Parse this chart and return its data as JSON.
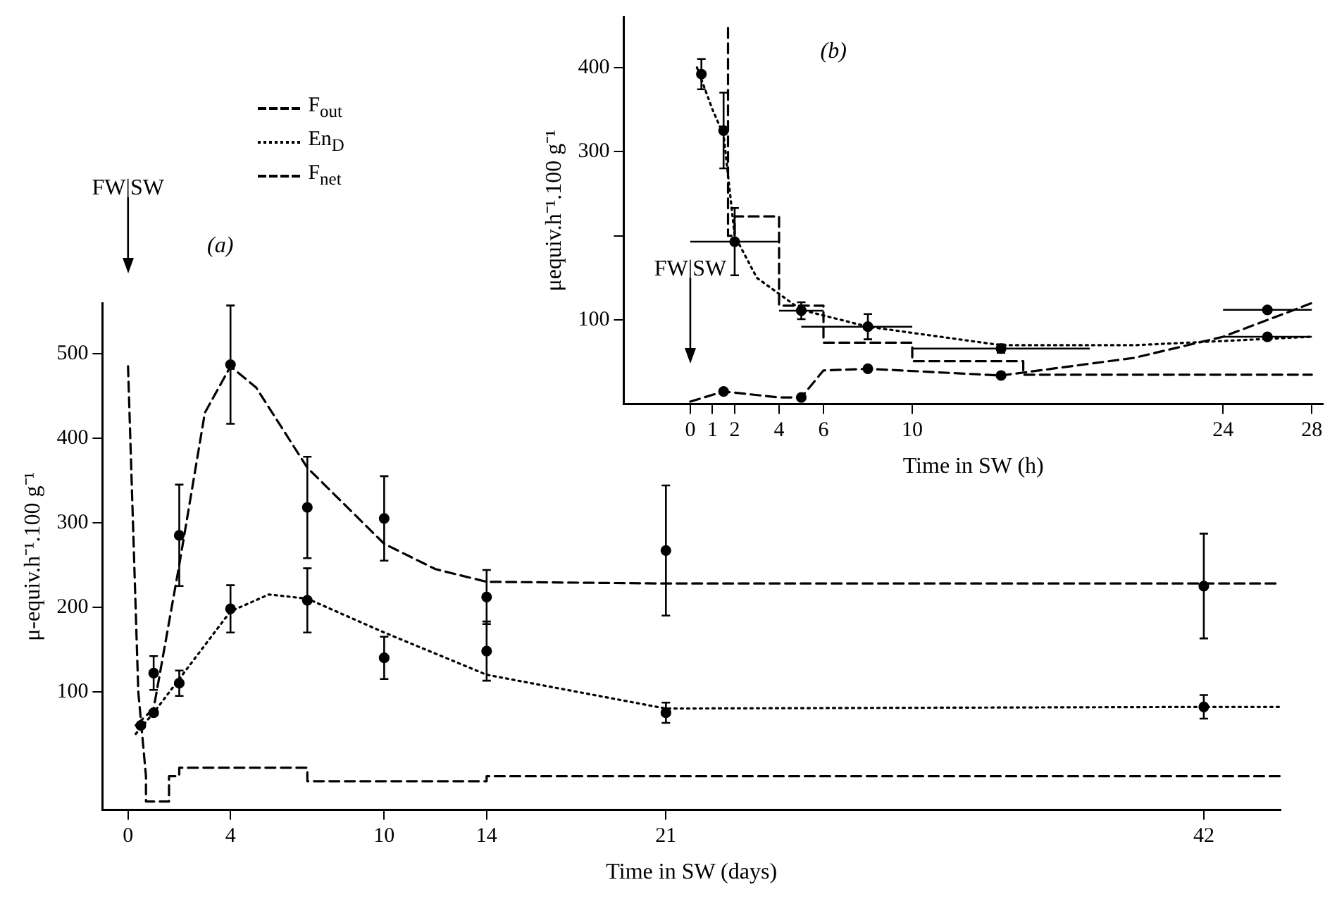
{
  "chart_data": [
    {
      "type": "line",
      "xlabel": "Time in SW (days)",
      "ylabel": "μ-equiv.h⁻¹.100 g⁻¹",
      "xlim": [
        -1,
        45
      ],
      "xticks": [
        0,
        4,
        10,
        14,
        21,
        42
      ],
      "ylim": [
        -40,
        560
      ],
      "yticks": [
        100,
        200,
        300,
        400,
        500
      ],
      "grid": false,
      "legend": "top left",
      "annotations": [
        "(a)"
      ],
      "ref_lines": [
        {
          "axis": "x",
          "value": 0,
          "label": "FW|SW"
        }
      ],
      "series": [
        {
          "name": "F$_{out}$",
          "type": "line",
          "line_style": "dashed",
          "marker": "none",
          "color": "#000000",
          "x": [
            0.3,
            1,
            2,
            3,
            4,
            5,
            7,
            10,
            12,
            14,
            21,
            42,
            45
          ],
          "values": [
            60,
            80,
            250,
            430,
            485,
            460,
            365,
            275,
            245,
            230,
            228,
            228,
            228
          ]
        },
        {
          "name": "En$_{D}$",
          "type": "line",
          "line_style": "dotted",
          "marker": "none",
          "color": "#000000",
          "x": [
            0.3,
            1,
            2,
            4,
            5.5,
            7,
            10,
            14,
            21,
            42,
            45
          ],
          "values": [
            50,
            75,
            115,
            195,
            215,
            210,
            170,
            120,
            80,
            82,
            82
          ]
        },
        {
          "name": "F$_{net}$",
          "type": "line",
          "line_style": "dashed",
          "marker": "none",
          "color": "#000000",
          "x": [
            0,
            0.4,
            0.7,
            0.7,
            1.6,
            1.6,
            2,
            2,
            7,
            7,
            14,
            14,
            45
          ],
          "values": [
            485,
            100,
            0,
            -30,
            -30,
            0,
            0,
            10,
            10,
            -6,
            -6,
            0,
            0
          ]
        },
        {
          "type": "scatter",
          "marker": "circle",
          "color": "#000000",
          "x": [
            1,
            2,
            4,
            7,
            10,
            14,
            21,
            42
          ],
          "values": [
            122,
            285,
            487,
            318,
            305,
            212,
            267,
            225
          ],
          "errors": [
            20,
            60,
            70,
            60,
            50,
            32,
            77,
            62
          ]
        },
        {
          "type": "scatter",
          "marker": "circle",
          "color": "#000000",
          "x": [
            0.5,
            1,
            2,
            4,
            7,
            10,
            14,
            21,
            42
          ],
          "values": [
            60,
            75,
            110,
            198,
            208,
            140,
            148,
            75,
            82
          ],
          "errors": [
            null,
            null,
            15,
            28,
            38,
            25,
            35,
            12,
            14
          ]
        }
      ]
    },
    {
      "type": "line",
      "xlabel": "Time in SW (h)",
      "ylabel": "μequiv.h⁻¹.100 g⁻¹",
      "xlim": [
        -3,
        28.5
      ],
      "xticks": [
        0,
        1,
        2,
        4,
        6,
        10,
        24,
        28
      ],
      "ylim": [
        0,
        460
      ],
      "yticks": [
        100,
        {
          "value": 200,
          "label": null
        },
        300,
        400
      ],
      "grid": false,
      "annotations": [
        "(b)"
      ],
      "ref_lines": [
        {
          "axis": "x",
          "value": 0,
          "label": "FW|SW"
        }
      ],
      "series": [
        {
          "type": "line",
          "line_style": "dotted",
          "marker": "none",
          "color": "#000000",
          "x": [
            0.3,
            1,
            1.5,
            2,
            3,
            5,
            8,
            14,
            20,
            24,
            28
          ],
          "values": [
            400,
            350,
            320,
            200,
            150,
            112,
            92,
            70,
            70,
            75,
            80
          ]
        },
        {
          "type": "line",
          "line_style": "dashed",
          "marker": "none",
          "color": "#000000",
          "x": [
            0,
            1.5,
            4,
            5,
            6,
            8,
            14,
            20,
            24,
            28
          ],
          "values": [
            3,
            15,
            8,
            8,
            40,
            42,
            34,
            55,
            80,
            120
          ]
        },
        {
          "type": "line",
          "line_style": "dashed",
          "marker": "none",
          "color": "#000000",
          "x": [
            1.7,
            1.7,
            2,
            2,
            4,
            4,
            6,
            6,
            10,
            10,
            15,
            15,
            28
          ],
          "values": [
            447,
            200,
            200,
            223,
            223,
            117,
            117,
            73,
            73,
            51,
            51,
            35,
            35
          ]
        },
        {
          "type": "scatter",
          "marker": "circle",
          "color": "#000000",
          "x": [
            0.5,
            1.5,
            2,
            5,
            8,
            14,
            26
          ],
          "values": [
            392,
            325,
            193,
            111,
            92,
            66,
            80
          ],
          "errors": [
            18,
            45,
            40,
            10,
            15,
            5,
            null
          ],
          "xerrors": [
            null,
            null,
            [
              0,
              4
            ],
            [
              4,
              6
            ],
            [
              5,
              10
            ],
            [
              10,
              18
            ],
            [
              24,
              28
            ]
          ]
        },
        {
          "type": "scatter",
          "marker": "circle",
          "color": "#000000",
          "x": [
            1.5,
            5,
            8,
            14,
            26
          ],
          "values": [
            15,
            8,
            42,
            34,
            112
          ],
          "xerrors": [
            null,
            null,
            null,
            null,
            [
              24,
              28
            ]
          ]
        }
      ]
    }
  ]
}
